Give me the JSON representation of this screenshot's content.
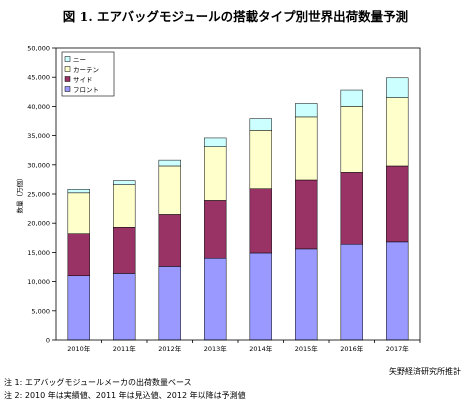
{
  "title": "図 1.  エアバッグモジュールの搭載タイプ別世界出荷数量予測",
  "source": "矢野経済研究所推計",
  "notes": [
    "注 1:  エアバッグモジュールメーカの出荷数量ベース",
    "注 2:  2010 年は実績値、2011 年は見込値、2012 年以降は予測値"
  ],
  "chart_data": {
    "type": "bar",
    "stacked": true,
    "categories": [
      "2010年",
      "2011年",
      "2012年",
      "2013年",
      "2014年",
      "2015年",
      "2016年",
      "2017年"
    ],
    "ylabel": "数量（万個）",
    "ylim": [
      0,
      50000
    ],
    "yticks": [
      0,
      5000,
      10000,
      15000,
      20000,
      25000,
      30000,
      35000,
      40000,
      45000,
      50000
    ],
    "ytick_labels": [
      "0",
      "5,000",
      "10,000",
      "15,000",
      "20,000",
      "25,000",
      "30,000",
      "35,000",
      "40,000",
      "45,000",
      "50,000"
    ],
    "grid": false,
    "legend": "top-left",
    "series": [
      {
        "name": "フロント",
        "color": "#9999ff",
        "values": [
          11000,
          11400,
          12600,
          14000,
          14900,
          15600,
          16400,
          16800
        ]
      },
      {
        "name": "サイド",
        "color": "#993366",
        "values": [
          7200,
          7900,
          8900,
          9900,
          11000,
          11800,
          12300,
          13000
        ]
      },
      {
        "name": "カーテン",
        "color": "#ffffcc",
        "values": [
          7000,
          7300,
          8300,
          9200,
          10000,
          10800,
          11300,
          11700
        ]
      },
      {
        "name": "ニー",
        "color": "#ccffff",
        "values": [
          600,
          700,
          1000,
          1500,
          2000,
          2300,
          2800,
          3400
        ]
      }
    ]
  }
}
